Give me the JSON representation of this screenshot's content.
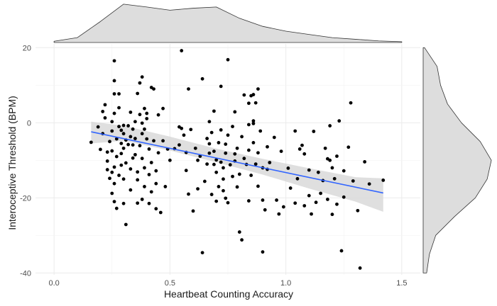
{
  "chart_data": {
    "type": "scatter",
    "title": "",
    "xlabel": "Heartbeat Counting Accuracy",
    "ylabel": "Interoceptive Threshold (BPM)",
    "xlim": [
      -0.08,
      1.58
    ],
    "ylim": [
      -40.5,
      21
    ],
    "grid": true,
    "x_ticks": [
      0.0,
      0.5,
      1.0,
      1.5
    ],
    "x_tick_labels": [
      "0.0",
      "0.5",
      "1.0",
      "1.5"
    ],
    "y_ticks": [
      -40,
      -20,
      0,
      20
    ],
    "y_tick_labels": [
      "-40",
      "-20",
      "0",
      "20"
    ],
    "colors": {
      "points": "#000000",
      "trend_line": "#3366ff",
      "confidence_band": "#d9d9d9",
      "density_fill": "#dddddd",
      "grid": "#ebebeb"
    },
    "series": [
      {
        "values": [
          {
            "x": 0.16,
            "y": -5.2
          },
          {
            "x": 0.19,
            "y": -1.1
          },
          {
            "x": 0.2,
            "y": -7.1
          },
          {
            "x": 0.21,
            "y": -2.9
          },
          {
            "x": 0.21,
            "y": 3.0
          },
          {
            "x": 0.22,
            "y": 4.8
          },
          {
            "x": 0.22,
            "y": 1.3
          },
          {
            "x": 0.23,
            "y": -7.8
          },
          {
            "x": 0.23,
            "y": -10.2
          },
          {
            "x": 0.23,
            "y": -12.5
          },
          {
            "x": 0.24,
            "y": -5.0
          },
          {
            "x": 0.24,
            "y": -14.8
          },
          {
            "x": 0.25,
            "y": -13.2
          },
          {
            "x": 0.25,
            "y": -2.2
          },
          {
            "x": 0.25,
            "y": 0.3
          },
          {
            "x": 0.25,
            "y": -18.8
          },
          {
            "x": 0.25,
            "y": -7.5
          },
          {
            "x": 0.26,
            "y": -11.8
          },
          {
            "x": 0.26,
            "y": -16.2
          },
          {
            "x": 0.26,
            "y": -21.0
          },
          {
            "x": 0.26,
            "y": 2.5
          },
          {
            "x": 0.26,
            "y": 7.7
          },
          {
            "x": 0.26,
            "y": 11.2
          },
          {
            "x": 0.26,
            "y": 16.5
          },
          {
            "x": 0.27,
            "y": -22.8
          },
          {
            "x": 0.27,
            "y": -9.0
          },
          {
            "x": 0.27,
            "y": -4.3
          },
          {
            "x": 0.28,
            "y": -1.0
          },
          {
            "x": 0.28,
            "y": 4.0
          },
          {
            "x": 0.28,
            "y": 7.7
          },
          {
            "x": 0.28,
            "y": -14.0
          },
          {
            "x": 0.29,
            "y": -8.2
          },
          {
            "x": 0.29,
            "y": -5.5
          },
          {
            "x": 0.29,
            "y": -2.0
          },
          {
            "x": 0.29,
            "y": -11.3
          },
          {
            "x": 0.3,
            "y": -2.9
          },
          {
            "x": 0.3,
            "y": -0.7
          },
          {
            "x": 0.3,
            "y": -6.8
          },
          {
            "x": 0.3,
            "y": -15.0
          },
          {
            "x": 0.3,
            "y": -21.5
          },
          {
            "x": 0.31,
            "y": -4.6
          },
          {
            "x": 0.31,
            "y": -10.7
          },
          {
            "x": 0.31,
            "y": -27.1
          },
          {
            "x": 0.32,
            "y": -5.8
          },
          {
            "x": 0.32,
            "y": -0.8
          },
          {
            "x": 0.33,
            "y": -3.7
          },
          {
            "x": 0.33,
            "y": 2.8
          },
          {
            "x": 0.33,
            "y": -12.3
          },
          {
            "x": 0.33,
            "y": -17.9
          },
          {
            "x": 0.34,
            "y": -9.4
          },
          {
            "x": 0.34,
            "y": -1.7
          },
          {
            "x": 0.34,
            "y": -5.9
          },
          {
            "x": 0.35,
            "y": 0.3
          },
          {
            "x": 0.35,
            "y": -8.5
          },
          {
            "x": 0.35,
            "y": -4.2
          },
          {
            "x": 0.36,
            "y": 7.8
          },
          {
            "x": 0.36,
            "y": -15.2
          },
          {
            "x": 0.36,
            "y": -21.4
          },
          {
            "x": 0.36,
            "y": -13.1
          },
          {
            "x": 0.37,
            "y": 10.6
          },
          {
            "x": 0.37,
            "y": 2.2
          },
          {
            "x": 0.37,
            "y": -6.1
          },
          {
            "x": 0.38,
            "y": -2.9
          },
          {
            "x": 0.38,
            "y": 12.2
          },
          {
            "x": 0.38,
            "y": -0.1
          },
          {
            "x": 0.38,
            "y": -20.4
          },
          {
            "x": 0.38,
            "y": -9.5
          },
          {
            "x": 0.39,
            "y": -1.7
          },
          {
            "x": 0.39,
            "y": -12.0
          },
          {
            "x": 0.39,
            "y": -17.0
          },
          {
            "x": 0.39,
            "y": 3.8
          },
          {
            "x": 0.4,
            "y": 1.1
          },
          {
            "x": 0.4,
            "y": -4.3
          },
          {
            "x": 0.4,
            "y": 2.5
          },
          {
            "x": 0.41,
            "y": -21.5
          },
          {
            "x": 0.41,
            "y": -13.8
          },
          {
            "x": 0.41,
            "y": -7.0
          },
          {
            "x": 0.42,
            "y": 9.4
          },
          {
            "x": 0.42,
            "y": -10.6
          },
          {
            "x": 0.42,
            "y": -18.4
          },
          {
            "x": 0.43,
            "y": 9.0
          },
          {
            "x": 0.43,
            "y": -4.8
          },
          {
            "x": 0.44,
            "y": -12.8
          },
          {
            "x": 0.44,
            "y": -22.9
          },
          {
            "x": 0.44,
            "y": -16.2
          },
          {
            "x": 0.45,
            "y": 2.1
          },
          {
            "x": 0.45,
            "y": -8.0
          },
          {
            "x": 0.46,
            "y": -23.9
          },
          {
            "x": 0.47,
            "y": -4.8
          },
          {
            "x": 0.47,
            "y": 3.8
          },
          {
            "x": 0.48,
            "y": -17.0
          },
          {
            "x": 0.49,
            "y": -7.0
          },
          {
            "x": 0.5,
            "y": -10.0
          },
          {
            "x": 0.52,
            "y": -6.9
          },
          {
            "x": 0.54,
            "y": -1.1
          },
          {
            "x": 0.54,
            "y": -5.9
          },
          {
            "x": 0.55,
            "y": 19.2
          },
          {
            "x": 0.55,
            "y": -1.5
          },
          {
            "x": 0.56,
            "y": -3.3
          },
          {
            "x": 0.57,
            "y": -7.9
          },
          {
            "x": 0.57,
            "y": -12.7
          },
          {
            "x": 0.58,
            "y": -19.0
          },
          {
            "x": 0.58,
            "y": 9.0
          },
          {
            "x": 0.59,
            "y": -1.8
          },
          {
            "x": 0.6,
            "y": -23.5
          },
          {
            "x": 0.61,
            "y": -6.8
          },
          {
            "x": 0.62,
            "y": -10.0
          },
          {
            "x": 0.62,
            "y": -17.6
          },
          {
            "x": 0.63,
            "y": -8.9
          },
          {
            "x": 0.64,
            "y": 11.7
          },
          {
            "x": 0.64,
            "y": -34.6
          },
          {
            "x": 0.65,
            "y": -15.6
          },
          {
            "x": 0.66,
            "y": -11.0
          },
          {
            "x": 0.66,
            "y": -4.2
          },
          {
            "x": 0.67,
            "y": -8.1
          },
          {
            "x": 0.67,
            "y": 0.3
          },
          {
            "x": 0.67,
            "y": -5.6
          },
          {
            "x": 0.68,
            "y": -2.6
          },
          {
            "x": 0.68,
            "y": -19.1
          },
          {
            "x": 0.69,
            "y": 3.1
          },
          {
            "x": 0.69,
            "y": -11.1
          },
          {
            "x": 0.69,
            "y": -7.6
          },
          {
            "x": 0.7,
            "y": -13.2
          },
          {
            "x": 0.7,
            "y": -20.9
          },
          {
            "x": 0.7,
            "y": -9.9
          },
          {
            "x": 0.71,
            "y": -17.0
          },
          {
            "x": 0.71,
            "y": -5.3
          },
          {
            "x": 0.72,
            "y": 9.7
          },
          {
            "x": 0.72,
            "y": -1.9
          },
          {
            "x": 0.72,
            "y": -10.5
          },
          {
            "x": 0.73,
            "y": -15.0
          },
          {
            "x": 0.73,
            "y": -12.0
          },
          {
            "x": 0.73,
            "y": -18.1
          },
          {
            "x": 0.74,
            "y": -5.7
          },
          {
            "x": 0.74,
            "y": -20.1
          },
          {
            "x": 0.74,
            "y": -8.1
          },
          {
            "x": 0.75,
            "y": -3.3
          },
          {
            "x": 0.75,
            "y": 16.8
          },
          {
            "x": 0.75,
            "y": -21.3
          },
          {
            "x": 0.76,
            "y": -11.2
          },
          {
            "x": 0.77,
            "y": -14.3
          },
          {
            "x": 0.77,
            "y": -1.0
          },
          {
            "x": 0.78,
            "y": -10.2
          },
          {
            "x": 0.78,
            "y": -8.3
          },
          {
            "x": 0.78,
            "y": 2.9
          },
          {
            "x": 0.79,
            "y": -17.1
          },
          {
            "x": 0.79,
            "y": -6.8
          },
          {
            "x": 0.8,
            "y": -13.7
          },
          {
            "x": 0.8,
            "y": -29.1
          },
          {
            "x": 0.81,
            "y": -3.7
          },
          {
            "x": 0.81,
            "y": -31.2
          },
          {
            "x": 0.82,
            "y": -9.5
          },
          {
            "x": 0.82,
            "y": 7.4
          },
          {
            "x": 0.83,
            "y": -11.1
          },
          {
            "x": 0.84,
            "y": -0.5
          },
          {
            "x": 0.84,
            "y": 5.2
          },
          {
            "x": 0.84,
            "y": -20.8
          },
          {
            "x": 0.84,
            "y": -7.3
          },
          {
            "x": 0.85,
            "y": -14.0
          },
          {
            "x": 0.85,
            "y": 7.2
          },
          {
            "x": 0.86,
            "y": -5.3
          },
          {
            "x": 0.86,
            "y": 7.5
          },
          {
            "x": 0.86,
            "y": -0.2
          },
          {
            "x": 0.86,
            "y": 0.5
          },
          {
            "x": 0.87,
            "y": -11.0
          },
          {
            "x": 0.87,
            "y": 5.3
          },
          {
            "x": 0.88,
            "y": -8.0
          },
          {
            "x": 0.88,
            "y": 9.0
          },
          {
            "x": 0.88,
            "y": -16.9
          },
          {
            "x": 0.89,
            "y": -2.2
          },
          {
            "x": 0.9,
            "y": -20.6
          },
          {
            "x": 0.9,
            "y": -12.0
          },
          {
            "x": 0.9,
            "y": -34.4
          },
          {
            "x": 0.91,
            "y": -23.2
          },
          {
            "x": 0.92,
            "y": -6.4
          },
          {
            "x": 0.92,
            "y": -12.4
          },
          {
            "x": 0.93,
            "y": -10.6
          },
          {
            "x": 0.95,
            "y": -3.9
          },
          {
            "x": 0.96,
            "y": -20.6
          },
          {
            "x": 0.97,
            "y": -24.3
          },
          {
            "x": 0.98,
            "y": -7.6
          },
          {
            "x": 0.99,
            "y": -22.4
          },
          {
            "x": 1.01,
            "y": -12.1
          },
          {
            "x": 1.02,
            "y": -17.4
          },
          {
            "x": 1.04,
            "y": -2.2
          },
          {
            "x": 1.04,
            "y": -21.4
          },
          {
            "x": 1.05,
            "y": -14.9
          },
          {
            "x": 1.06,
            "y": -7.0
          },
          {
            "x": 1.07,
            "y": -6.0
          },
          {
            "x": 1.08,
            "y": -8.3
          },
          {
            "x": 1.08,
            "y": -22.1
          },
          {
            "x": 1.1,
            "y": -19.4
          },
          {
            "x": 1.1,
            "y": -12.6
          },
          {
            "x": 1.11,
            "y": -24.3
          },
          {
            "x": 1.12,
            "y": -2.3
          },
          {
            "x": 1.13,
            "y": -21.2
          },
          {
            "x": 1.14,
            "y": -13.2
          },
          {
            "x": 1.15,
            "y": -18.8
          },
          {
            "x": 1.16,
            "y": -15.4
          },
          {
            "x": 1.17,
            "y": -6.8
          },
          {
            "x": 1.18,
            "y": -9.6
          },
          {
            "x": 1.18,
            "y": -20.4
          },
          {
            "x": 1.19,
            "y": -10.0
          },
          {
            "x": 1.19,
            "y": -0.8
          },
          {
            "x": 1.2,
            "y": -24.4
          },
          {
            "x": 1.2,
            "y": -12.0
          },
          {
            "x": 1.21,
            "y": -14.9
          },
          {
            "x": 1.22,
            "y": -21.7
          },
          {
            "x": 1.22,
            "y": -8.9
          },
          {
            "x": 1.23,
            "y": 0.5
          },
          {
            "x": 1.24,
            "y": -34.1
          },
          {
            "x": 1.25,
            "y": -19.8
          },
          {
            "x": 1.25,
            "y": -12.8
          },
          {
            "x": 1.27,
            "y": -6.5
          },
          {
            "x": 1.28,
            "y": 5.3
          },
          {
            "x": 1.29,
            "y": -15.5
          },
          {
            "x": 1.31,
            "y": -23.4
          },
          {
            "x": 1.32,
            "y": -38.7
          },
          {
            "x": 1.34,
            "y": -10.4
          },
          {
            "x": 1.36,
            "y": -16.3
          },
          {
            "x": 1.42,
            "y": -15.3
          }
        ]
      }
    ],
    "trend_line": {
      "x": [
        0.16,
        1.42
      ],
      "y": [
        -2.4,
        -18.7
      ]
    },
    "confidence_band": {
      "x": [
        0.16,
        0.3,
        0.5,
        0.7,
        0.9,
        1.1,
        1.3,
        1.42
      ],
      "lower": [
        -5.5,
        -4.8,
        -7.4,
        -10.5,
        -13.8,
        -17.5,
        -21.0,
        -23.7
      ],
      "upper": [
        0.3,
        -0.8,
        -3.7,
        -6.9,
        -9.6,
        -12.1,
        -14.5,
        -14.8
      ]
    },
    "marginal_density_x": {
      "x": [
        0.0,
        0.1,
        0.2,
        0.3,
        0.4,
        0.5,
        0.6,
        0.7,
        0.8,
        0.9,
        1.0,
        1.1,
        1.2,
        1.3,
        1.4,
        1.5
      ],
      "density": [
        0.03,
        0.12,
        0.52,
        0.95,
        0.88,
        0.8,
        0.85,
        0.88,
        0.6,
        0.4,
        0.28,
        0.2,
        0.12,
        0.08,
        0.04,
        0.02
      ]
    },
    "marginal_density_y": {
      "y": [
        -40,
        -35,
        -30,
        -25,
        -20,
        -15,
        -10,
        -5,
        0,
        5,
        10,
        15,
        20
      ],
      "density": [
        0.05,
        0.09,
        0.18,
        0.45,
        0.75,
        0.92,
        0.98,
        0.82,
        0.55,
        0.35,
        0.25,
        0.2,
        0.02
      ]
    }
  }
}
